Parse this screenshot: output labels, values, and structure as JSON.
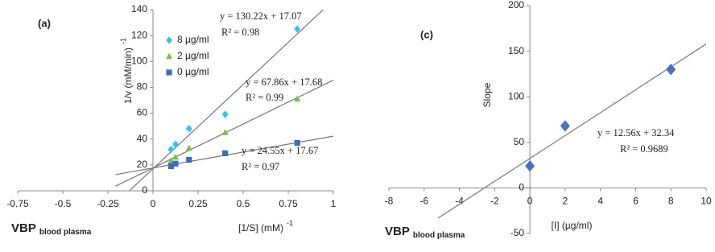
{
  "chart_data": [
    {
      "type": "scatter",
      "panel": "(a)",
      "xlabel": "[1/S] (mM)",
      "xlabel_sup": "-1",
      "ylabel": "1/v (mM/min)",
      "ylabel_sup": "-1",
      "note": "VBP",
      "note_sub": "blood plasma",
      "xlim": [
        -0.75,
        1
      ],
      "xticks": [
        -0.75,
        -0.5,
        -0.25,
        0,
        0.25,
        0.5,
        0.75,
        1
      ],
      "ylim": [
        0,
        140
      ],
      "yticks": [
        0,
        20,
        40,
        60,
        80,
        100,
        120,
        140
      ],
      "grid": false,
      "legend": "upper left",
      "x": [
        0.1,
        0.125,
        0.2,
        0.4,
        0.8
      ],
      "series": [
        {
          "name": "8 µg/ml",
          "color": "#38c3f2",
          "marker": "diamond",
          "values": [
            32,
            36,
            48,
            59,
            125
          ],
          "fit": {
            "slope": 130.22,
            "intercept": 17.07
          },
          "equation": "y = 130.22x + 17.07",
          "r2": "R² = 0.98"
        },
        {
          "name": "2 µg/ml",
          "color": "#78c043",
          "marker": "triangle",
          "values": [
            23,
            26,
            33,
            45,
            71
          ],
          "fit": {
            "slope": 67.86,
            "intercept": 17.68
          },
          "equation": "y = 67.86x + 17.68",
          "r2": "R² = 0.99"
        },
        {
          "name": "0 µg/ml",
          "color": "#3c6cbc",
          "marker": "square",
          "values": [
            19,
            21,
            24,
            29,
            37
          ],
          "fit": {
            "slope": 24.55,
            "intercept": 17.67
          },
          "equation": "y = 24.55x + 17.67",
          "r2": "R² = 0.97"
        }
      ]
    },
    {
      "type": "scatter",
      "panel": "(c)",
      "xlabel": "[I] (µg/ml)",
      "ylabel": "Slope",
      "note": "VBP",
      "note_sub": "blood plasma",
      "xlim": [
        -8,
        10
      ],
      "xticks": [
        -8,
        -6,
        -4,
        -2,
        0,
        2,
        4,
        6,
        8,
        10
      ],
      "ylim": [
        -50,
        200
      ],
      "yticks": [
        -50,
        0,
        50,
        100,
        150,
        200
      ],
      "grid": false,
      "x": [
        0,
        2,
        8
      ],
      "series": [
        {
          "color": "#4a72b8",
          "marker": "diamond",
          "values": [
            24,
            68,
            130
          ],
          "fit": {
            "slope": 12.56,
            "intercept": 32.34
          },
          "equation": "y = 12.56x + 32.34",
          "r2": "R² = 0.9689"
        }
      ]
    }
  ]
}
